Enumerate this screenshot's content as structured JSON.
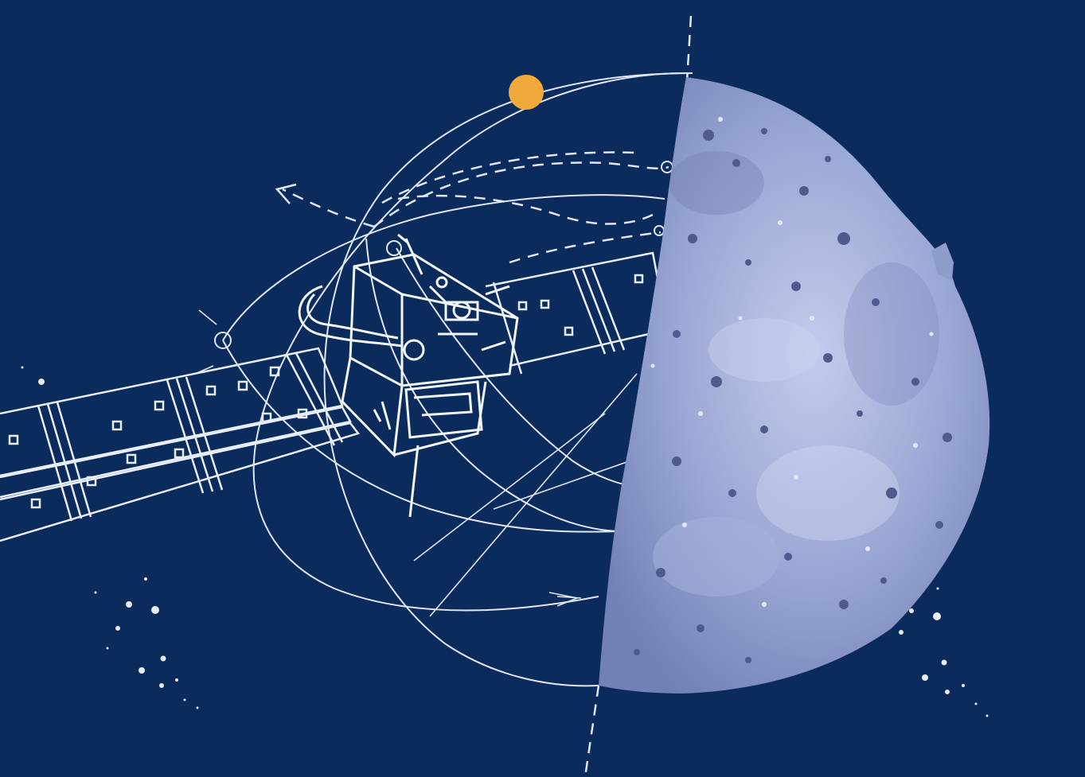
{
  "colors": {
    "background": "#0b2b5c",
    "linework": "#e8eef8",
    "sun": "#f2a93b",
    "asteroid_base": "#8e9ccc",
    "asteroid_light": "#b9c4e6",
    "asteroid_dark": "#5b6795"
  },
  "scene": {
    "subject": "spacecraft-line-drawing",
    "target": "asteroid-half-disc",
    "star": "sun-dot"
  }
}
